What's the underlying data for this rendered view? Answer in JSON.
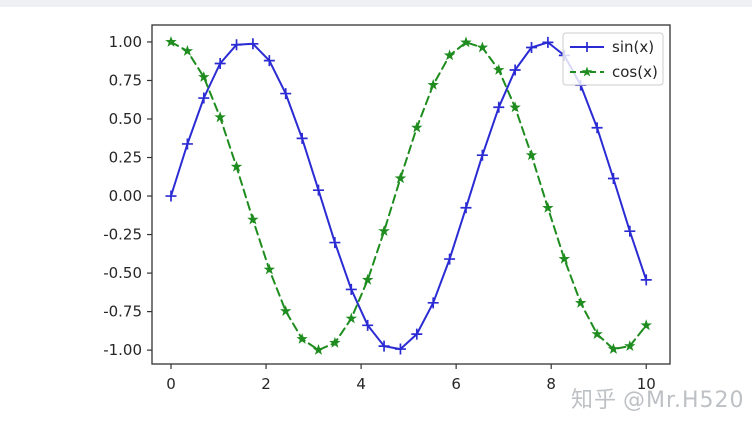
{
  "chart_data": {
    "type": "line",
    "title": "",
    "xlabel": "",
    "ylabel": "",
    "grid": false,
    "legend_position": "upper right",
    "xlim": [
      -0.4,
      10.5
    ],
    "ylim": [
      -1.09,
      1.11
    ],
    "xtick_labels": [
      "0",
      "2",
      "4",
      "6",
      "8",
      "10"
    ],
    "xtick_values": [
      0,
      2,
      4,
      6,
      8,
      10
    ],
    "ytick_labels": [
      "1.00",
      "0.75",
      "0.50",
      "0.25",
      "0.00",
      "-0.25",
      "-0.50",
      "-0.75",
      "-1.00"
    ],
    "ytick_values": [
      1.0,
      0.75,
      0.5,
      0.25,
      0.0,
      -0.25,
      -0.5,
      -0.75,
      -1.0
    ],
    "x": [
      0,
      0.345,
      0.69,
      1.034,
      1.379,
      1.724,
      2.069,
      2.414,
      2.759,
      3.103,
      3.448,
      3.793,
      4.138,
      4.483,
      4.828,
      5.172,
      5.517,
      5.862,
      6.207,
      6.552,
      6.897,
      7.241,
      7.586,
      7.931,
      8.276,
      8.621,
      8.966,
      9.31,
      9.655,
      10
    ],
    "series": [
      {
        "name": "sin(x)",
        "values": [
          0,
          0.338,
          0.636,
          0.86,
          0.982,
          0.988,
          0.879,
          0.665,
          0.374,
          0.038,
          -0.302,
          -0.606,
          -0.839,
          -0.974,
          -0.993,
          -0.896,
          -0.693,
          -0.409,
          -0.076,
          0.265,
          0.576,
          0.818,
          0.964,
          0.997,
          0.913,
          0.72,
          0.443,
          0.114,
          -0.228,
          -0.544
        ],
        "color": "#2b2bd4",
        "line_style": "solid",
        "marker": "plus"
      },
      {
        "name": "cos(x)",
        "values": [
          1,
          0.941,
          0.772,
          0.511,
          0.19,
          -0.153,
          -0.477,
          -0.747,
          -0.928,
          -0.999,
          -0.953,
          -0.795,
          -0.544,
          -0.228,
          0.115,
          0.444,
          0.721,
          0.913,
          0.997,
          0.964,
          0.818,
          0.575,
          0.265,
          -0.077,
          -0.408,
          -0.694,
          -0.896,
          -0.993,
          -0.974,
          -0.839
        ],
        "color": "#1e8c1e",
        "line_style": "dashed",
        "marker": "star"
      }
    ]
  },
  "colors": {
    "frame": "#333333",
    "tick_text": "#262626",
    "legend_border": "#cccccc",
    "legend_bg": "#ffffff",
    "top_strip": "#eef0f3"
  },
  "watermark": {
    "site": "知乎",
    "user": "@Mr.H520"
  }
}
